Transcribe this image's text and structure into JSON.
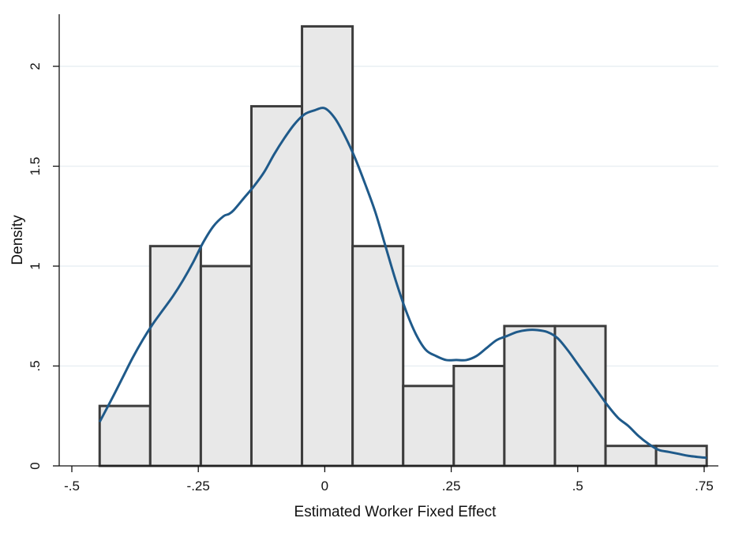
{
  "chart_data": {
    "type": "bar",
    "subtype": "histogram-with-kde",
    "xlabel": "Estimated Worker Fixed Effect",
    "ylabel": "Density",
    "xlim": [
      -0.5,
      0.76
    ],
    "ylim": [
      0,
      2.3
    ],
    "grid": true,
    "grid_axis": "y",
    "x_ticks": [
      {
        "value": -0.5,
        "label": "-.5"
      },
      {
        "value": -0.25,
        "label": "-.25"
      },
      {
        "value": 0,
        "label": "0"
      },
      {
        "value": 0.25,
        "label": ".25"
      },
      {
        "value": 0.5,
        "label": ".5"
      },
      {
        "value": 0.75,
        "label": ".75"
      }
    ],
    "y_ticks": [
      {
        "value": 0,
        "label": "0"
      },
      {
        "value": 0.5,
        "label": ".5"
      },
      {
        "value": 1,
        "label": "1"
      },
      {
        "value": 1.5,
        "label": "1.5"
      },
      {
        "value": 2,
        "label": "2"
      }
    ],
    "bins": [
      {
        "start": -0.445,
        "end": -0.345,
        "density": 0.3
      },
      {
        "start": -0.345,
        "end": -0.245,
        "density": 1.1
      },
      {
        "start": -0.245,
        "end": -0.145,
        "density": 1.0
      },
      {
        "start": -0.145,
        "end": -0.045,
        "density": 1.8
      },
      {
        "start": -0.045,
        "end": 0.055,
        "density": 2.2
      },
      {
        "start": 0.055,
        "end": 0.155,
        "density": 1.1
      },
      {
        "start": 0.155,
        "end": 0.255,
        "density": 0.4
      },
      {
        "start": 0.255,
        "end": 0.355,
        "density": 0.5
      },
      {
        "start": 0.355,
        "end": 0.455,
        "density": 0.7
      },
      {
        "start": 0.455,
        "end": 0.555,
        "density": 0.7
      },
      {
        "start": 0.555,
        "end": 0.655,
        "density": 0.1
      },
      {
        "start": 0.655,
        "end": 0.755,
        "density": 0.1
      }
    ],
    "kde": {
      "x": [
        -0.445,
        -0.42,
        -0.4,
        -0.38,
        -0.36,
        -0.34,
        -0.32,
        -0.3,
        -0.28,
        -0.26,
        -0.24,
        -0.22,
        -0.2,
        -0.19,
        -0.18,
        -0.16,
        -0.14,
        -0.12,
        -0.1,
        -0.08,
        -0.06,
        -0.04,
        -0.02,
        0.0,
        0.02,
        0.04,
        0.06,
        0.08,
        0.1,
        0.12,
        0.14,
        0.16,
        0.18,
        0.2,
        0.22,
        0.24,
        0.26,
        0.28,
        0.3,
        0.32,
        0.34,
        0.36,
        0.38,
        0.4,
        0.42,
        0.44,
        0.46,
        0.48,
        0.5,
        0.52,
        0.54,
        0.56,
        0.58,
        0.6,
        0.62,
        0.64,
        0.66,
        0.68,
        0.7,
        0.72,
        0.755
      ],
      "y": [
        0.22,
        0.34,
        0.44,
        0.54,
        0.63,
        0.71,
        0.78,
        0.85,
        0.93,
        1.02,
        1.12,
        1.2,
        1.25,
        1.26,
        1.28,
        1.34,
        1.4,
        1.47,
        1.56,
        1.64,
        1.71,
        1.76,
        1.78,
        1.79,
        1.74,
        1.65,
        1.54,
        1.41,
        1.27,
        1.1,
        0.93,
        0.78,
        0.66,
        0.58,
        0.55,
        0.53,
        0.53,
        0.53,
        0.55,
        0.59,
        0.63,
        0.65,
        0.67,
        0.68,
        0.68,
        0.67,
        0.64,
        0.58,
        0.51,
        0.44,
        0.37,
        0.3,
        0.24,
        0.2,
        0.15,
        0.11,
        0.08,
        0.07,
        0.06,
        0.05,
        0.04
      ]
    },
    "colors": {
      "bar_fill": "#e8e8e8",
      "bar_stroke": "#3c3c3c",
      "kde_line": "#1f5a8a",
      "grid": "#e9eff3",
      "axis": "#111111"
    }
  }
}
